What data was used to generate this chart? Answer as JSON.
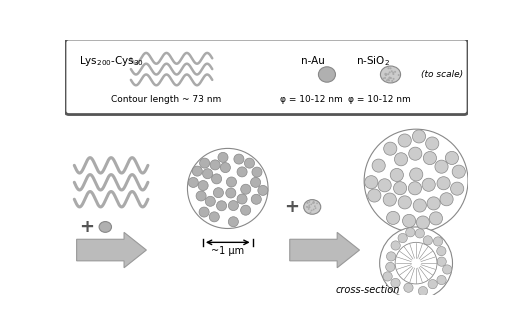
{
  "bg_color": "#ffffff",
  "gray_wave": "#aaaaaa",
  "gray_particle_au": "#b0b0b0",
  "gray_particle_sio2": "#cccccc",
  "gray_edge": "#888888",
  "gray_arrow": "#bbbbbb",
  "gray_arrow_edge": "#999999",
  "label_lys": "Lys$_{200}$-Cys$_{30}$",
  "label_contour": "Contour length ~ 73 nm",
  "label_nAu": "n-Au",
  "label_nSiO2": "n-SiO$_2$",
  "label_phi_Au": "φ = 10-12 nm",
  "label_phi_SiO2": "φ = 10-12 nm",
  "label_scale": "(to scale)",
  "label_1um": "~1 μm",
  "label_cross": "cross-section"
}
